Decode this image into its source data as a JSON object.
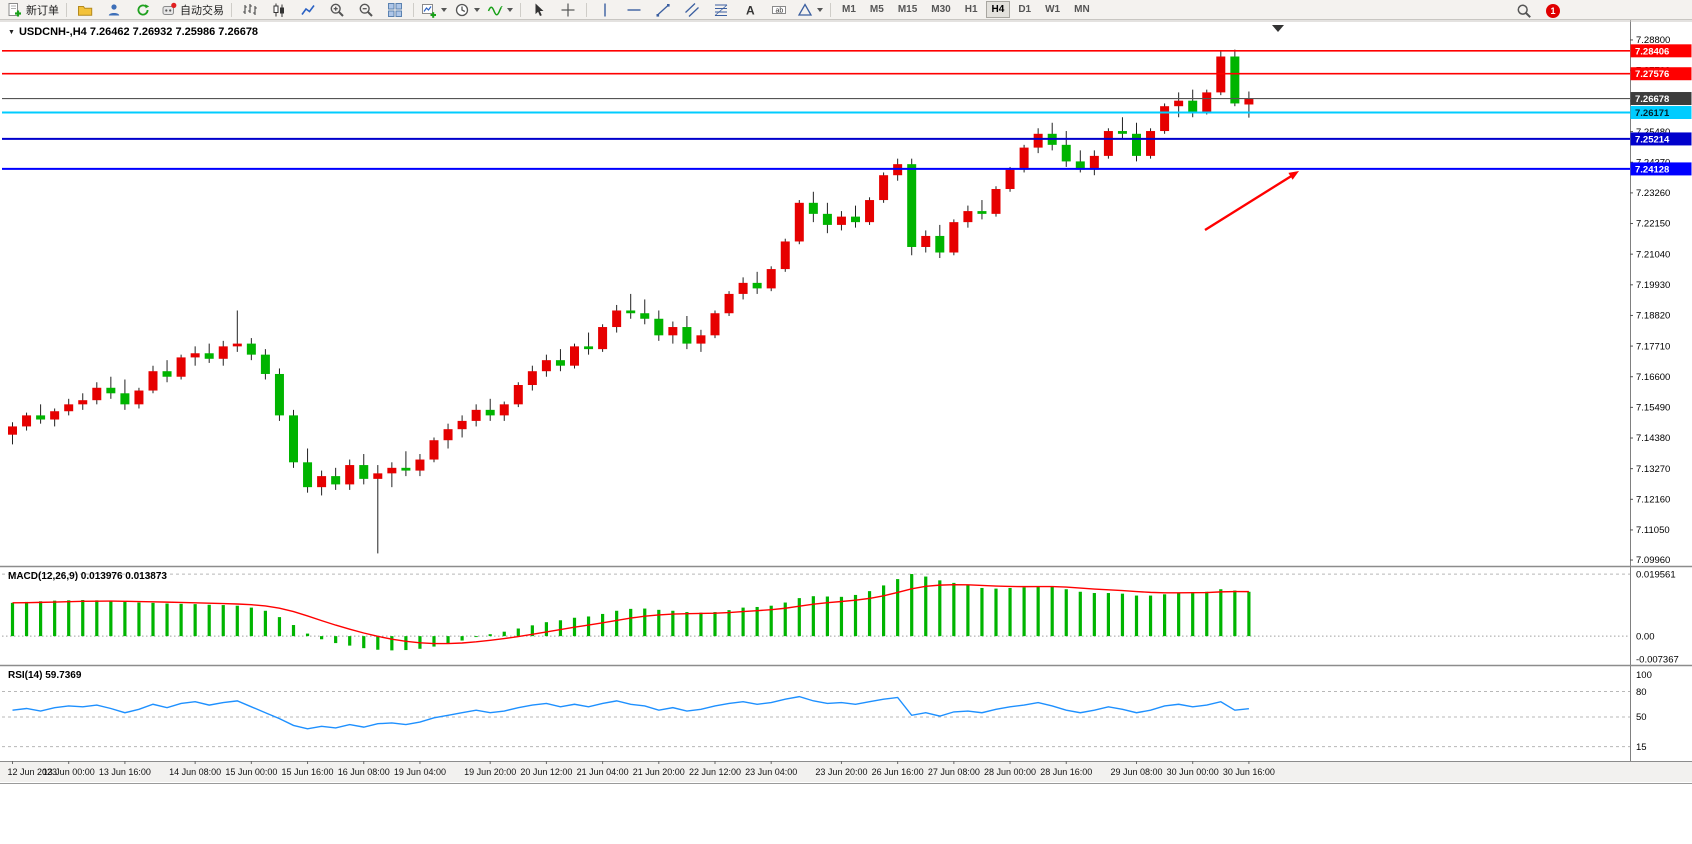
{
  "toolbar": {
    "new_order_label": "新订单",
    "auto_trading_label": "自动交易",
    "timeframes": [
      "M1",
      "M5",
      "M15",
      "M30",
      "H1",
      "H4",
      "D1",
      "W1",
      "MN"
    ],
    "active_timeframe": "H4",
    "notification_count": "1",
    "icons": [
      "new-order-icon",
      "profiles-icon",
      "market-watch-icon",
      "refresh-icon",
      "auto-trading-icon",
      "bar-chart-icon",
      "candlestick-chart-icon",
      "line-chart-icon",
      "zoom-in-icon",
      "zoom-out-icon",
      "tile-windows-icon",
      "new-chart-icon",
      "periods-icon",
      "indicators-icon",
      "cursor-icon",
      "crosshair-icon",
      "vertical-line-icon",
      "horizontal-line-icon",
      "trendline-icon",
      "channel-icon",
      "fibonacci-icon",
      "text-icon",
      "label-icon",
      "shapes-icon",
      "search-icon",
      "notification-badge"
    ]
  },
  "chart": {
    "title": "USDCNH-,H4 7.26462 7.26932 7.25986 7.26678",
    "symbol": "USDCNH-",
    "period": "H4"
  },
  "chart_data": {
    "type": "candlestick",
    "title": "USDCNH- H4",
    "current_bar": {
      "open": 7.26462,
      "high": 7.26932,
      "low": 7.25986,
      "close": 7.26678
    },
    "ylim": [
      7.0978,
      7.2945
    ],
    "colors": {
      "up": "#e60000",
      "down": "#00b400",
      "macd_hist": "#00b400",
      "macd_signal": "#ff0000",
      "rsi": "#1e90ff"
    },
    "price_ticks": [
      7.288,
      7.277,
      7.2659,
      7.2548,
      7.2437,
      7.2326,
      7.2215,
      7.2104,
      7.1993,
      7.1882,
      7.1771,
      7.166,
      7.1549,
      7.1438,
      7.1327,
      7.1216,
      7.1105,
      7.0996
    ],
    "levels": [
      {
        "price": 7.28406,
        "label": "7.28406",
        "color": "#ff0000",
        "width": 1.6,
        "badge_bg": "#ff0000",
        "badge_fg": "#ffffff"
      },
      {
        "price": 7.27576,
        "label": "7.27576",
        "color": "#ff0000",
        "width": 1.6,
        "badge_bg": "#ff0000",
        "badge_fg": "#ffffff"
      },
      {
        "price": 7.26678,
        "label": "7.26678",
        "color": "#555555",
        "width": 1.1,
        "badge_bg": "#3c3c3c",
        "badge_fg": "#ffffff"
      },
      {
        "price": 7.26171,
        "label": "7.26171",
        "color": "#00ccff",
        "width": 2.0,
        "badge_bg": "#00ccff",
        "badge_fg": "#00222e"
      },
      {
        "price": 7.25214,
        "label": "7.25214",
        "color": "#0000cc",
        "width": 2.0,
        "badge_bg": "#0000cc",
        "badge_fg": "#ffffff"
      },
      {
        "price": 7.24128,
        "label": "7.24128",
        "color": "#0000ff",
        "width": 2.0,
        "badge_bg": "#0000ff",
        "badge_fg": "#ffffff"
      }
    ],
    "annotation_arrow": {
      "type": "arrow",
      "color": "#ff0000",
      "from": [
        1205,
        210
      ],
      "to": [
        1299,
        151
      ]
    },
    "time_labels": [
      "12 Jun 2023",
      "13 Jun 00:00",
      "13 Jun 16:00",
      "14 Jun 08:00",
      "15 Jun 00:00",
      "15 Jun 16:00",
      "16 Jun 08:00",
      "19 Jun 04:00",
      "19 Jun 20:00",
      "20 Jun 12:00",
      "21 Jun 04:00",
      "21 Jun 20:00",
      "22 Jun 12:00",
      "23 Jun 04:00",
      "23 Jun 20:00",
      "26 Jun 16:00",
      "27 Jun 08:00",
      "28 Jun 00:00",
      "28 Jun 16:00",
      "29 Jun 08:00",
      "30 Jun 00:00",
      "30 Jun 16:00"
    ],
    "candles": [
      [
        7.145,
        7.1495,
        7.1415,
        7.148
      ],
      [
        7.148,
        7.153,
        7.1465,
        7.152
      ],
      [
        7.152,
        7.156,
        7.149,
        7.1505
      ],
      [
        7.1505,
        7.1545,
        7.148,
        7.1535
      ],
      [
        7.1535,
        7.158,
        7.152,
        7.156
      ],
      [
        7.156,
        7.16,
        7.154,
        7.1575
      ],
      [
        7.1575,
        7.164,
        7.156,
        7.162
      ],
      [
        7.162,
        7.166,
        7.158,
        7.16
      ],
      [
        7.16,
        7.165,
        7.154,
        7.156
      ],
      [
        7.156,
        7.162,
        7.1545,
        7.161
      ],
      [
        7.161,
        7.17,
        7.16,
        7.168
      ],
      [
        7.168,
        7.172,
        7.164,
        7.166
      ],
      [
        7.166,
        7.174,
        7.165,
        7.173
      ],
      [
        7.173,
        7.177,
        7.17,
        7.1745
      ],
      [
        7.1745,
        7.178,
        7.171,
        7.1725
      ],
      [
        7.1725,
        7.179,
        7.17,
        7.177
      ],
      [
        7.177,
        7.19,
        7.175,
        7.178
      ],
      [
        7.178,
        7.18,
        7.172,
        7.174
      ],
      [
        7.174,
        7.176,
        7.165,
        7.167
      ],
      [
        7.167,
        7.169,
        7.15,
        7.152
      ],
      [
        7.152,
        7.154,
        7.133,
        7.135
      ],
      [
        7.135,
        7.14,
        7.124,
        7.126
      ],
      [
        7.126,
        7.132,
        7.123,
        7.13
      ],
      [
        7.13,
        7.133,
        7.125,
        7.127
      ],
      [
        7.127,
        7.136,
        7.125,
        7.134
      ],
      [
        7.134,
        7.138,
        7.127,
        7.129
      ],
      [
        7.129,
        7.134,
        7.102,
        7.131
      ],
      [
        7.131,
        7.135,
        7.126,
        7.133
      ],
      [
        7.133,
        7.139,
        7.13,
        7.132
      ],
      [
        7.132,
        7.138,
        7.13,
        7.136
      ],
      [
        7.136,
        7.144,
        7.135,
        7.143
      ],
      [
        7.143,
        7.149,
        7.14,
        7.147
      ],
      [
        7.147,
        7.152,
        7.144,
        7.15
      ],
      [
        7.15,
        7.156,
        7.148,
        7.154
      ],
      [
        7.154,
        7.158,
        7.15,
        7.152
      ],
      [
        7.152,
        7.157,
        7.15,
        7.156
      ],
      [
        7.156,
        7.164,
        7.155,
        7.163
      ],
      [
        7.163,
        7.17,
        7.161,
        7.168
      ],
      [
        7.168,
        7.174,
        7.166,
        7.172
      ],
      [
        7.172,
        7.176,
        7.168,
        7.17
      ],
      [
        7.17,
        7.178,
        7.169,
        7.177
      ],
      [
        7.177,
        7.182,
        7.174,
        7.176
      ],
      [
        7.176,
        7.185,
        7.175,
        7.184
      ],
      [
        7.184,
        7.192,
        7.182,
        7.19
      ],
      [
        7.19,
        7.196,
        7.187,
        7.189
      ],
      [
        7.189,
        7.194,
        7.185,
        7.187
      ],
      [
        7.187,
        7.19,
        7.179,
        7.181
      ],
      [
        7.181,
        7.186,
        7.178,
        7.184
      ],
      [
        7.184,
        7.188,
        7.176,
        7.178
      ],
      [
        7.178,
        7.183,
        7.175,
        7.181
      ],
      [
        7.181,
        7.19,
        7.18,
        7.189
      ],
      [
        7.189,
        7.197,
        7.188,
        7.196
      ],
      [
        7.196,
        7.202,
        7.194,
        7.2
      ],
      [
        7.2,
        7.204,
        7.196,
        7.198
      ],
      [
        7.198,
        7.206,
        7.197,
        7.205
      ],
      [
        7.205,
        7.216,
        7.204,
        7.215
      ],
      [
        7.215,
        7.23,
        7.214,
        7.229
      ],
      [
        7.229,
        7.233,
        7.222,
        7.225
      ],
      [
        7.225,
        7.229,
        7.218,
        7.221
      ],
      [
        7.221,
        7.226,
        7.219,
        7.224
      ],
      [
        7.224,
        7.228,
        7.22,
        7.222
      ],
      [
        7.222,
        7.231,
        7.221,
        7.23
      ],
      [
        7.23,
        7.24,
        7.229,
        7.239
      ],
      [
        7.239,
        7.245,
        7.237,
        7.243
      ],
      [
        7.243,
        7.245,
        7.21,
        7.213
      ],
      [
        7.213,
        7.219,
        7.211,
        7.217
      ],
      [
        7.217,
        7.221,
        7.209,
        7.211
      ],
      [
        7.211,
        7.223,
        7.21,
        7.222
      ],
      [
        7.222,
        7.228,
        7.22,
        7.226
      ],
      [
        7.226,
        7.23,
        7.223,
        7.225
      ],
      [
        7.225,
        7.235,
        7.224,
        7.234
      ],
      [
        7.234,
        7.242,
        7.233,
        7.241
      ],
      [
        7.241,
        7.25,
        7.24,
        7.249
      ],
      [
        7.249,
        7.256,
        7.247,
        7.254
      ],
      [
        7.254,
        7.258,
        7.248,
        7.25
      ],
      [
        7.25,
        7.255,
        7.242,
        7.244
      ],
      [
        7.244,
        7.248,
        7.24,
        7.241
      ],
      [
        7.241,
        7.248,
        7.239,
        7.246
      ],
      [
        7.246,
        7.256,
        7.245,
        7.255
      ],
      [
        7.255,
        7.26,
        7.252,
        7.254
      ],
      [
        7.254,
        7.258,
        7.244,
        7.246
      ],
      [
        7.246,
        7.256,
        7.245,
        7.255
      ],
      [
        7.255,
        7.265,
        7.254,
        7.264
      ],
      [
        7.264,
        7.269,
        7.26,
        7.266
      ],
      [
        7.266,
        7.27,
        7.26,
        7.262
      ],
      [
        7.262,
        7.27,
        7.261,
        7.269
      ],
      [
        7.269,
        7.284,
        7.268,
        7.282
      ],
      [
        7.282,
        7.2845,
        7.264,
        7.265
      ],
      [
        7.26462,
        7.26932,
        7.25986,
        7.26678
      ]
    ],
    "macd": {
      "label": "MACD(12,26,9) 0.013976 0.013873",
      "ylim": [
        -0.0088,
        0.0215
      ],
      "axis": [
        {
          "value": 0.019561,
          "label": "0.019561",
          "line": "dash"
        },
        {
          "value": 0.0,
          "label": "0.00",
          "line": "dot"
        },
        {
          "value": -0.007367,
          "label": "-0.007367",
          "line": "none"
        }
      ],
      "values": [
        0.0105,
        0.0108,
        0.011,
        0.0112,
        0.0113,
        0.0114,
        0.0113,
        0.0111,
        0.0108,
        0.0106,
        0.0105,
        0.0103,
        0.0102,
        0.0101,
        0.0099,
        0.0098,
        0.0096,
        0.009,
        0.008,
        0.006,
        0.0035,
        0.0008,
        -0.001,
        -0.0022,
        -0.003,
        -0.0038,
        -0.0043,
        -0.0045,
        -0.0044,
        -0.004,
        -0.0033,
        -0.0024,
        -0.0014,
        -0.0003,
        0.0006,
        0.0014,
        0.0024,
        0.0034,
        0.0044,
        0.005,
        0.0058,
        0.0062,
        0.007,
        0.008,
        0.0086,
        0.0087,
        0.0083,
        0.008,
        0.0076,
        0.0074,
        0.0076,
        0.0082,
        0.009,
        0.0092,
        0.0096,
        0.0106,
        0.012,
        0.0126,
        0.0125,
        0.0124,
        0.013,
        0.0142,
        0.016,
        0.018,
        0.0196,
        0.0188,
        0.0176,
        0.0168,
        0.016,
        0.0152,
        0.015,
        0.0152,
        0.0154,
        0.0158,
        0.0156,
        0.0148,
        0.014,
        0.0136,
        0.0136,
        0.0134,
        0.0128,
        0.0128,
        0.0132,
        0.0136,
        0.0138,
        0.014,
        0.0148,
        0.0144,
        0.014
      ]
    },
    "rsi": {
      "label": "RSI(14) 59.7369",
      "ylim": [
        -2,
        109
      ],
      "axis": [
        {
          "value": 100,
          "label": "100",
          "line": "none"
        },
        {
          "value": 80,
          "label": "80",
          "line": "dash"
        },
        {
          "value": 50,
          "label": "50",
          "line": "dash"
        },
        {
          "value": 15,
          "label": "15",
          "line": "dash"
        }
      ],
      "values": [
        58,
        60,
        57,
        61,
        63,
        62,
        64,
        60,
        55,
        59,
        65,
        61,
        66,
        68,
        64,
        67,
        69,
        62,
        55,
        48,
        40,
        36,
        39,
        37,
        41,
        38,
        42,
        43,
        41,
        44,
        49,
        52,
        55,
        58,
        55,
        57,
        61,
        64,
        66,
        62,
        65,
        62,
        66,
        69,
        65,
        63,
        58,
        61,
        57,
        59,
        63,
        66,
        68,
        65,
        67,
        71,
        74,
        69,
        66,
        67,
        65,
        68,
        71,
        73,
        52,
        55,
        51,
        56,
        57,
        55,
        59,
        62,
        64,
        67,
        63,
        58,
        55,
        58,
        62,
        59,
        55,
        58,
        63,
        65,
        62,
        64,
        68,
        58,
        59.7369
      ]
    }
  }
}
